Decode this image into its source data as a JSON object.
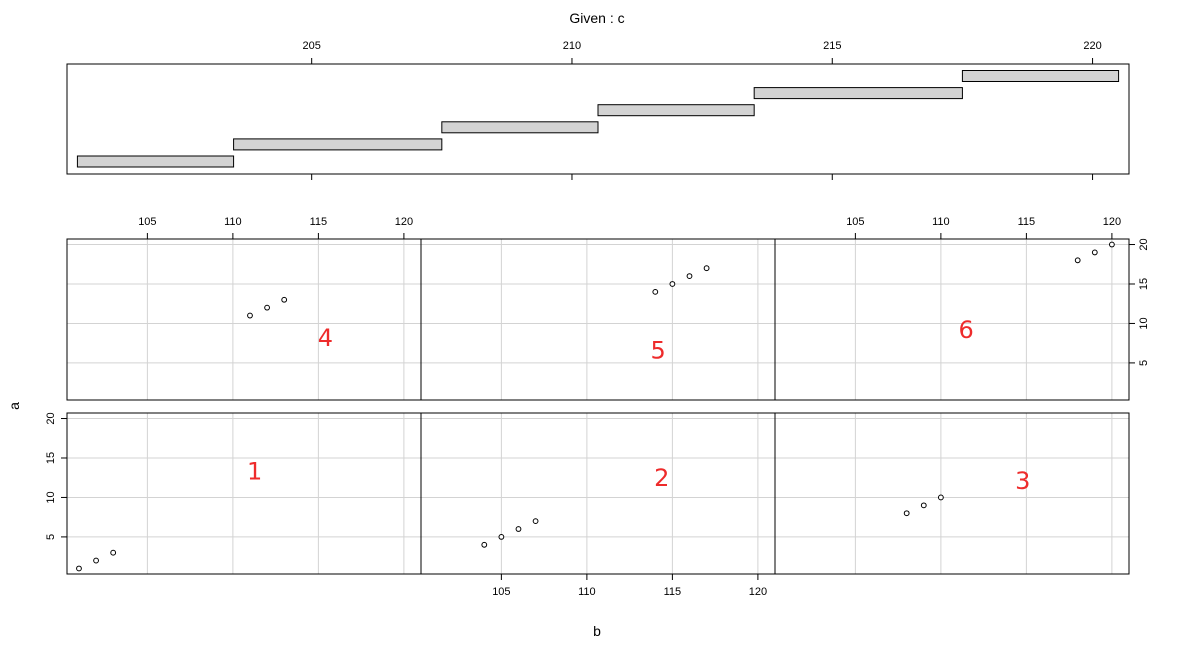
{
  "chart_data": {
    "type": "scatter",
    "title": "Given : c",
    "xlabel": "b",
    "ylabel": "a",
    "given_axis": {
      "variable": "c",
      "range": [
        200.3,
        220.7
      ],
      "ticks": [
        "205",
        "210",
        "215",
        "220"
      ]
    },
    "given_intervals": [
      {
        "from": 200.5,
        "to": 203.5
      },
      {
        "from": 203.5,
        "to": 207.5
      },
      {
        "from": 207.5,
        "to": 210.5
      },
      {
        "from": 210.5,
        "to": 213.5
      },
      {
        "from": 213.5,
        "to": 217.5
      },
      {
        "from": 217.5,
        "to": 220.5
      }
    ],
    "panel_x_range": [
      100.3,
      121.0
    ],
    "panel_y_range": [
      0.3,
      20.7
    ],
    "x_ticks": [
      "105",
      "110",
      "115",
      "120"
    ],
    "y_ticks": [
      "5",
      "10",
      "15",
      "20"
    ],
    "grid": true,
    "panels": [
      {
        "label": "1",
        "points": [
          [
            101,
            1
          ],
          [
            102,
            2
          ],
          [
            103,
            3
          ]
        ]
      },
      {
        "label": "2",
        "points": [
          [
            104,
            4
          ],
          [
            105,
            5
          ],
          [
            106,
            6
          ],
          [
            107,
            7
          ]
        ]
      },
      {
        "label": "3",
        "points": [
          [
            108,
            8
          ],
          [
            109,
            9
          ],
          [
            110,
            10
          ]
        ]
      },
      {
        "label": "4",
        "points": [
          [
            111,
            11
          ],
          [
            112,
            12
          ],
          [
            113,
            13
          ]
        ]
      },
      {
        "label": "5",
        "points": [
          [
            114,
            14
          ],
          [
            115,
            15
          ],
          [
            116,
            16
          ],
          [
            117,
            17
          ]
        ]
      },
      {
        "label": "6",
        "points": [
          [
            118,
            18
          ],
          [
            119,
            19
          ],
          [
            120,
            20
          ]
        ]
      }
    ]
  }
}
